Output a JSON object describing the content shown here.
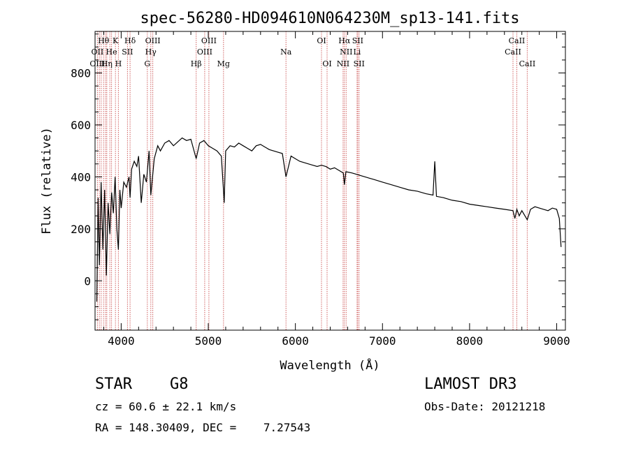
{
  "chart_data": {
    "type": "line",
    "title": "spec-56280-HD094610N064230M_sp13-141.fits",
    "xlabel": "Wavelength (Å)",
    "ylabel": "Flux (relative)",
    "xlim": [
      3700,
      9100
    ],
    "ylim": [
      -190,
      960
    ],
    "xticks": [
      4000,
      5000,
      6000,
      7000,
      8000,
      9000
    ],
    "yticks": [
      0,
      200,
      400,
      600,
      800
    ],
    "series": [
      {
        "name": "flux",
        "x": [
          3720,
          3735,
          3750,
          3770,
          3790,
          3810,
          3830,
          3850,
          3870,
          3890,
          3910,
          3930,
          3950,
          3968,
          3985,
          4000,
          4030,
          4060,
          4090,
          4102,
          4120,
          4150,
          4180,
          4200,
          4230,
          4260,
          4290,
          4320,
          4340,
          4380,
          4420,
          4450,
          4500,
          4550,
          4600,
          4650,
          4700,
          4750,
          4800,
          4861,
          4900,
          4950,
          5000,
          5050,
          5100,
          5150,
          5172,
          5183,
          5200,
          5250,
          5300,
          5350,
          5400,
          5450,
          5500,
          5550,
          5600,
          5650,
          5700,
          5750,
          5800,
          5850,
          5892,
          5950,
          6000,
          6050,
          6100,
          6150,
          6200,
          6250,
          6300,
          6350,
          6400,
          6450,
          6500,
          6550,
          6563,
          6580,
          6650,
          6700,
          6750,
          6800,
          6850,
          6900,
          7000,
          7100,
          7200,
          7300,
          7400,
          7500,
          7580,
          7600,
          7620,
          7700,
          7800,
          7900,
          8000,
          8100,
          8200,
          8300,
          8400,
          8498,
          8520,
          8542,
          8570,
          8600,
          8662,
          8700,
          8750,
          8800,
          8850,
          8900,
          8950,
          9000,
          9030,
          9050
        ],
        "y": [
          -80,
          320,
          60,
          380,
          120,
          350,
          20,
          300,
          180,
          340,
          260,
          400,
          200,
          120,
          350,
          280,
          380,
          360,
          400,
          320,
          430,
          460,
          440,
          480,
          300,
          410,
          380,
          500,
          330,
          470,
          520,
          500,
          530,
          540,
          520,
          535,
          550,
          540,
          545,
          470,
          530,
          540,
          520,
          510,
          500,
          480,
          360,
          300,
          500,
          520,
          515,
          530,
          520,
          510,
          500,
          520,
          525,
          515,
          505,
          500,
          495,
          490,
          400,
          480,
          470,
          460,
          455,
          450,
          445,
          440,
          445,
          440,
          430,
          435,
          425,
          415,
          370,
          420,
          415,
          410,
          405,
          400,
          395,
          390,
          380,
          370,
          360,
          350,
          345,
          335,
          330,
          460,
          325,
          320,
          310,
          305,
          295,
          290,
          285,
          280,
          275,
          270,
          240,
          275,
          250,
          270,
          235,
          275,
          285,
          280,
          275,
          270,
          280,
          275,
          240,
          130
        ],
        "color": "#000000"
      }
    ],
    "lines": {
      "color": "#d06060",
      "wavelengths": [
        3727,
        3750,
        3771,
        3798,
        3820,
        3835,
        3870,
        3889,
        3934,
        3968,
        4072,
        4102,
        4300,
        4340,
        4363,
        4861,
        4959,
        5007,
        5175,
        5892,
        6300,
        6364,
        6548,
        6563,
        6583,
        6708,
        6716,
        6731,
        8498,
        8542,
        8662
      ],
      "labels": [
        {
          "text": "Hθ",
          "wl": 3798,
          "row": 1
        },
        {
          "text": "K",
          "wl": 3934,
          "row": 1
        },
        {
          "text": "Hδ",
          "wl": 4102,
          "row": 1
        },
        {
          "text": "OIII",
          "wl": 4363,
          "row": 1
        },
        {
          "text": "OIII",
          "wl": 5007,
          "row": 1
        },
        {
          "text": "OI",
          "wl": 6300,
          "row": 1
        },
        {
          "text": "Hα",
          "wl": 6563,
          "row": 1
        },
        {
          "text": "SII",
          "wl": 6716,
          "row": 1
        },
        {
          "text": "CaII",
          "wl": 8542,
          "row": 1
        },
        {
          "text": "OII",
          "wl": 3727,
          "row": 2
        },
        {
          "text": "He",
          "wl": 3889,
          "row": 2
        },
        {
          "text": "SII",
          "wl": 4072,
          "row": 2
        },
        {
          "text": "Hγ",
          "wl": 4340,
          "row": 2
        },
        {
          "text": "OIII",
          "wl": 4959,
          "row": 2
        },
        {
          "text": "Na",
          "wl": 5892,
          "row": 2
        },
        {
          "text": "NII",
          "wl": 6583,
          "row": 2
        },
        {
          "text": "Li",
          "wl": 6708,
          "row": 2
        },
        {
          "text": "CaII",
          "wl": 8498,
          "row": 2
        },
        {
          "text": "OIII",
          "wl": 3727,
          "row": 3
        },
        {
          "text": "Hη",
          "wl": 3835,
          "row": 3
        },
        {
          "text": "H",
          "wl": 3968,
          "row": 3
        },
        {
          "text": "G",
          "wl": 4300,
          "row": 3
        },
        {
          "text": "Hβ",
          "wl": 4861,
          "row": 3
        },
        {
          "text": "Mg",
          "wl": 5175,
          "row": 3
        },
        {
          "text": "OI",
          "wl": 6364,
          "row": 3
        },
        {
          "text": "NII",
          "wl": 6548,
          "row": 3
        },
        {
          "text": "SII",
          "wl": 6731,
          "row": 3
        },
        {
          "text": "CaII",
          "wl": 8662,
          "row": 3
        }
      ]
    }
  },
  "info": {
    "class": "STAR",
    "subclass": "G8",
    "survey": "LAMOST DR3",
    "cz": "cz = 60.6 ± 22.1 km/s",
    "obs_date": "Obs-Date: 20121218",
    "coords": "RA = 148.30409, DEC =    7.27543"
  }
}
